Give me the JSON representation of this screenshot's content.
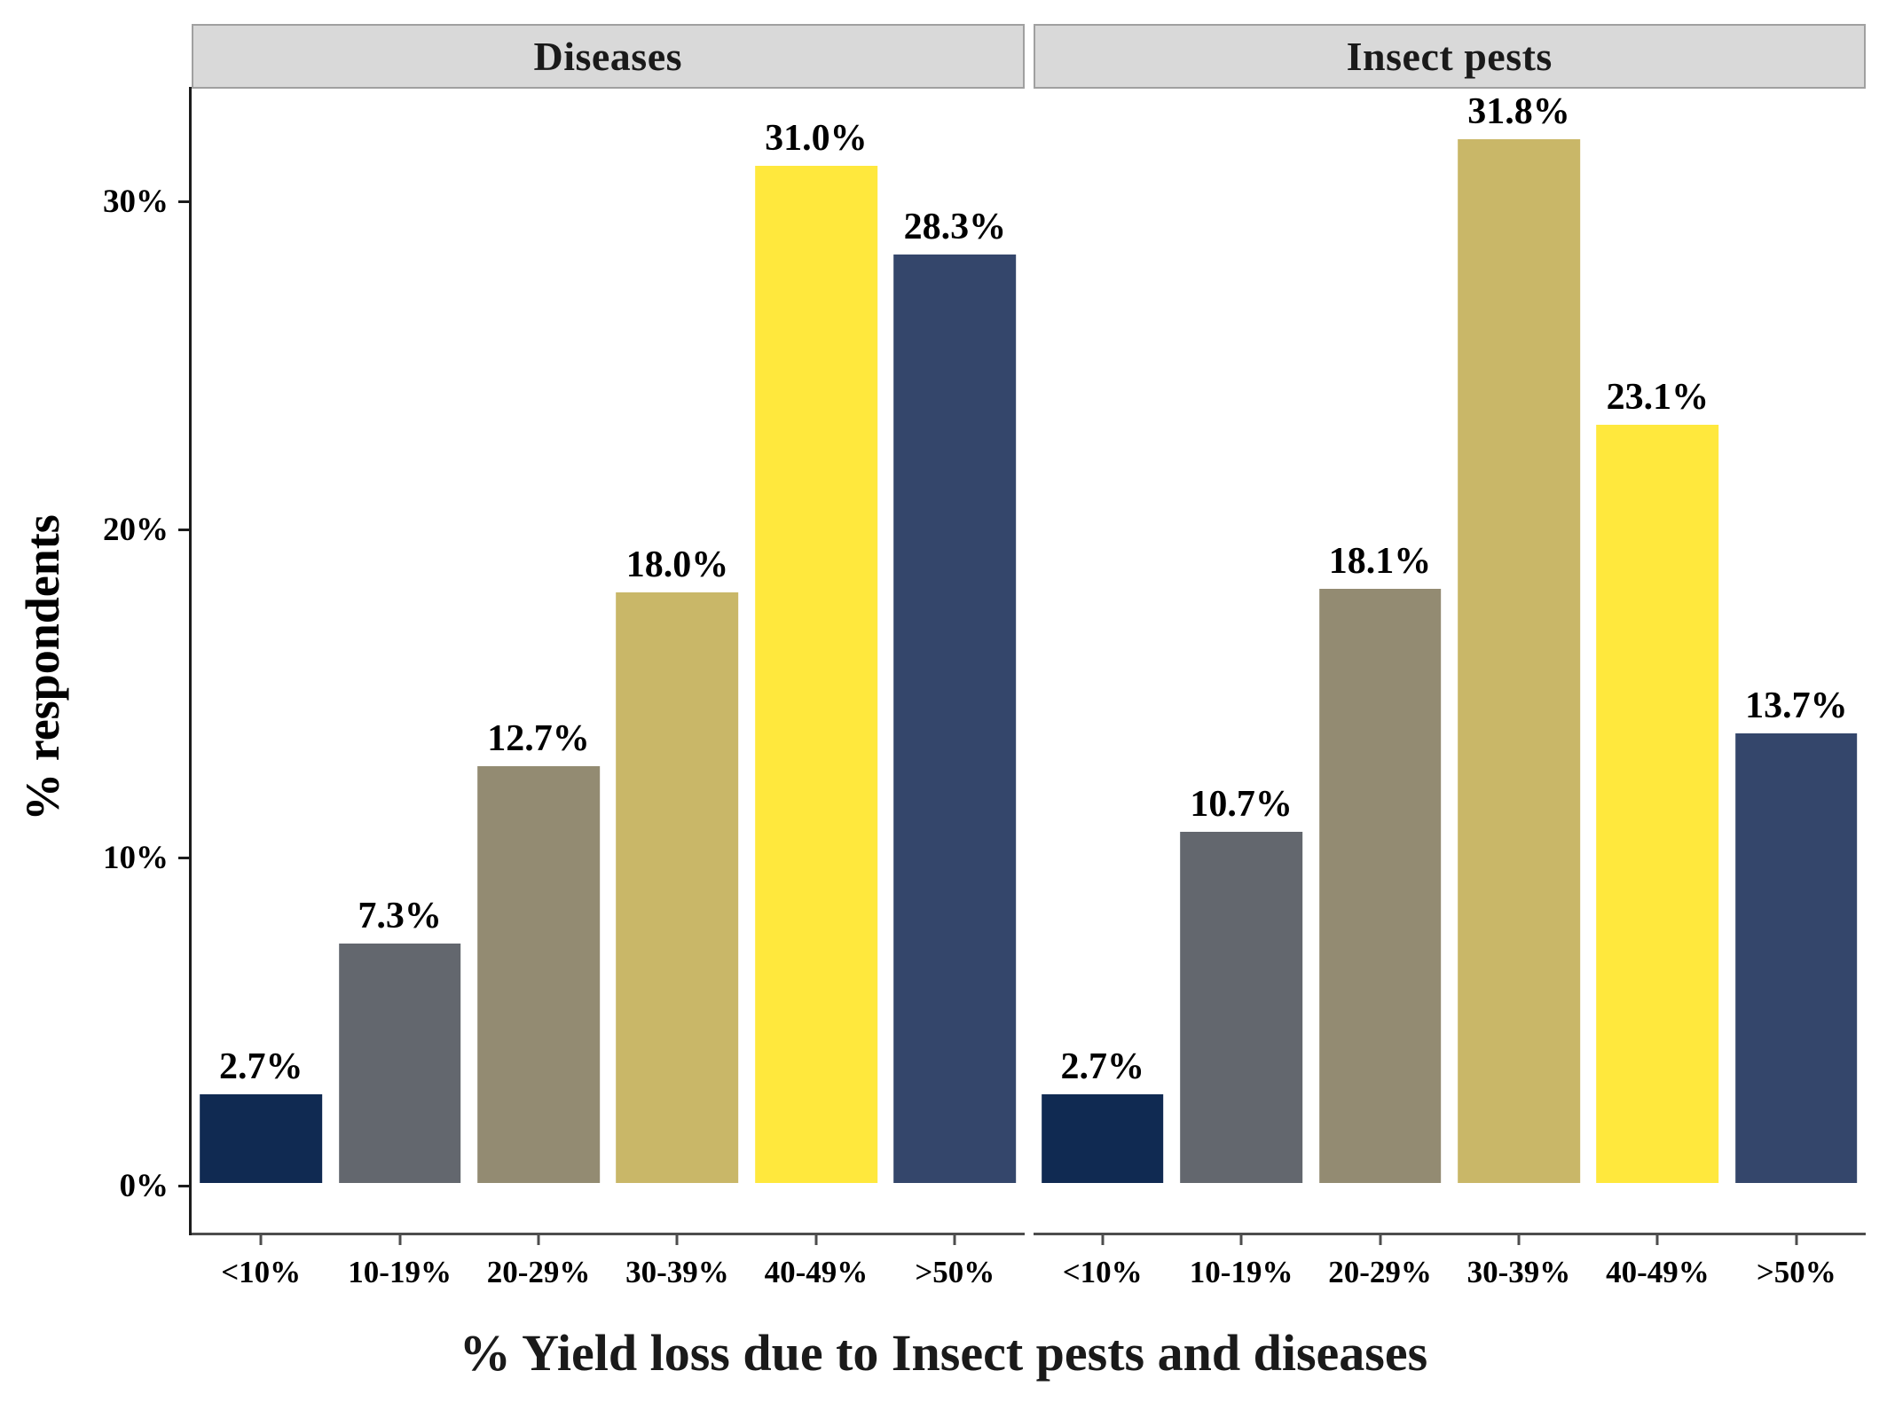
{
  "chart_data": {
    "type": "bar",
    "title": "",
    "xlabel": "% Yield loss due to Insect pests and diseases",
    "ylabel": "% respondents",
    "categories": [
      "<10%",
      "10-19%",
      "20-29%",
      "30-39%",
      "40-49%",
      ">50%"
    ],
    "facets": [
      {
        "label": "Diseases",
        "values": [
          2.7,
          7.3,
          12.7,
          18.0,
          31.0,
          28.3
        ],
        "value_labels": [
          "2.7%",
          "7.3%",
          "12.7%",
          "18.0%",
          "31.0%",
          "28.3%"
        ]
      },
      {
        "label": "Insect pests",
        "values": [
          2.7,
          10.7,
          18.1,
          31.8,
          23.1,
          13.7
        ],
        "value_labels": [
          "2.7%",
          "10.7%",
          "18.1%",
          "31.8%",
          "23.1%",
          "13.7%"
        ]
      }
    ],
    "yticks": [
      {
        "value": 0,
        "label": "0%"
      },
      {
        "value": 10,
        "label": "10%"
      },
      {
        "value": 20,
        "label": "20%"
      },
      {
        "value": 30,
        "label": "30%"
      }
    ],
    "ylim": [
      0,
      34.9
    ],
    "grid": false,
    "legend": "none",
    "bar_colors": [
      "#102a52",
      "#63676e",
      "#938b72",
      "#c9b768",
      "#ffe83d",
      "#34466b"
    ],
    "strip_background": "#d9d9d9",
    "strip_border": "#a0a0a0",
    "axis_color": "#1c1c1c"
  }
}
